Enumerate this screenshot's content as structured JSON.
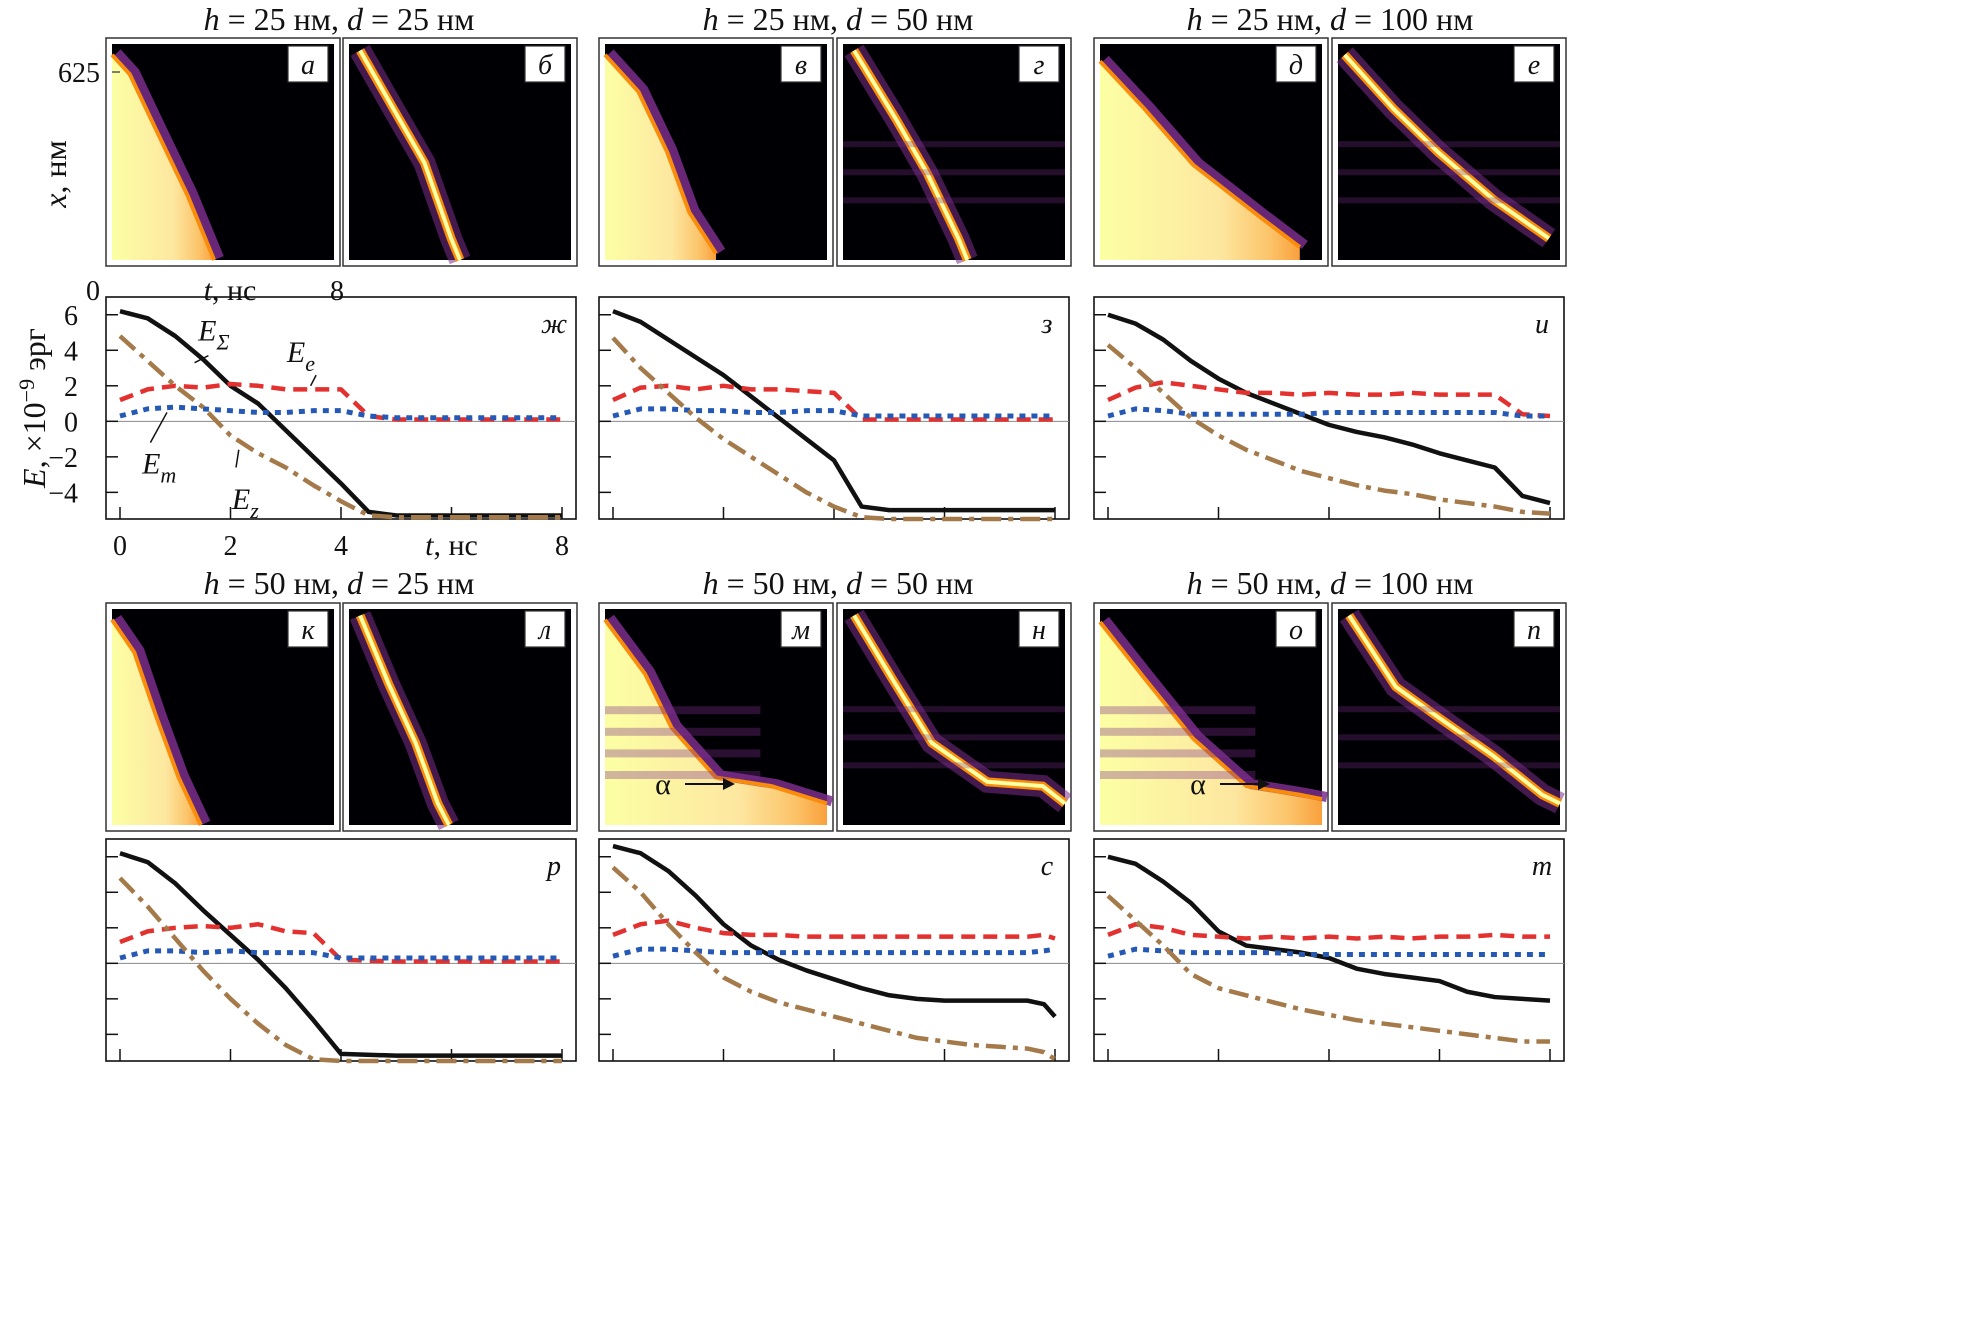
{
  "groups": [
    {
      "title_h": "25 нм",
      "title_d": "25 нм",
      "heat_labels": [
        "а",
        "б"
      ],
      "energy_label": "ж"
    },
    {
      "title_h": "25 нм",
      "title_d": "50 нм",
      "heat_labels": [
        "в",
        "г"
      ],
      "energy_label": "з"
    },
    {
      "title_h": "25 нм",
      "title_d": "100 нм",
      "heat_labels": [
        "д",
        "е"
      ],
      "energy_label": "и"
    },
    {
      "title_h": "50 нм",
      "title_d": "25 нм",
      "heat_labels": [
        "к",
        "л"
      ],
      "energy_label": "р"
    },
    {
      "title_h": "50 нм",
      "title_d": "50 нм",
      "heat_labels": [
        "м",
        "н"
      ],
      "energy_label": "с"
    },
    {
      "title_h": "50 нм",
      "title_d": "100 нм",
      "heat_labels": [
        "о",
        "п"
      ],
      "energy_label": "т"
    }
  ],
  "title_h_symbol": "h",
  "title_d_symbol": "d",
  "heatmap_axes": {
    "y_tick": "625",
    "y_label_symbol": "x",
    "y_label_unit": ", нм",
    "x_tick_start": "0",
    "x_tick_end": "8",
    "x_label_symbol": "t",
    "x_label_unit": ", нс"
  },
  "energy_axes": {
    "y_label_symbol": "E",
    "y_label_unit": ", ×10",
    "y_label_exp": "−9",
    "y_label_unit2": " эрг",
    "y_ticks": [
      "6",
      "4",
      "2",
      "0",
      "−2",
      "−4"
    ],
    "x_ticks": [
      "0",
      "2",
      "4",
      "8"
    ],
    "x_label_symbol": "t",
    "x_label_unit": ", нс"
  },
  "curve_labels": {
    "sum": {
      "main": "E",
      "sub": "Σ"
    },
    "e": {
      "main": "E",
      "sub": "e"
    },
    "m": {
      "main": "E",
      "sub": "m"
    },
    "z": {
      "main": "E",
      "sub": "z"
    }
  },
  "alpha_label": "α",
  "colors": {
    "sum": "#111111",
    "e": "#e2312f",
    "m": "#2659b5",
    "z": "#a57a4a",
    "heat_bg": "#000004",
    "heat_mid": "#7a2d8c",
    "heat_hot": "#f98c0a",
    "heat_max": "#fcffa4"
  },
  "chart_data": [
    {
      "type": "line",
      "panel": "ж",
      "x": [
        0,
        0.5,
        1,
        1.5,
        2,
        2.5,
        3,
        3.5,
        4,
        4.5,
        5,
        6,
        7,
        8
      ],
      "series": [
        {
          "name": "EΣ",
          "values": [
            6.2,
            5.8,
            4.8,
            3.5,
            2.0,
            1.0,
            -0.5,
            -2.0,
            -3.5,
            -5.1,
            -5.3,
            -5.3,
            -5.3,
            -5.3
          ]
        },
        {
          "name": "Ee",
          "values": [
            1.2,
            1.8,
            2.0,
            1.9,
            2.1,
            2.0,
            1.8,
            1.8,
            1.8,
            0.3,
            0.1,
            0.1,
            0.1,
            0.1
          ]
        },
        {
          "name": "Em",
          "values": [
            0.3,
            0.7,
            0.8,
            0.7,
            0.6,
            0.5,
            0.5,
            0.6,
            0.6,
            0.3,
            0.2,
            0.2,
            0.2,
            0.2
          ]
        },
        {
          "name": "Ez",
          "values": [
            4.8,
            3.4,
            2.0,
            0.8,
            -0.8,
            -1.8,
            -2.6,
            -3.6,
            -4.5,
            -5.3,
            -5.4,
            -5.4,
            -5.4,
            -5.4
          ]
        }
      ],
      "xlim": [
        0,
        8
      ],
      "ylim": [
        -5.5,
        7
      ]
    },
    {
      "type": "line",
      "panel": "з",
      "x": [
        0,
        0.5,
        1,
        1.5,
        2,
        2.5,
        3,
        3.5,
        4,
        4.5,
        5,
        5.5,
        6,
        7,
        8
      ],
      "series": [
        {
          "name": "EΣ",
          "values": [
            6.2,
            5.6,
            4.6,
            3.6,
            2.6,
            1.4,
            0.2,
            -1.0,
            -2.2,
            -4.8,
            -5.0,
            -5.0,
            -5.0,
            -5.0,
            -5.0
          ]
        },
        {
          "name": "Ee",
          "values": [
            1.2,
            1.9,
            2.0,
            1.8,
            2.0,
            1.8,
            1.8,
            1.7,
            1.6,
            0.1,
            0.1,
            0.1,
            0.1,
            0.1,
            0.1
          ]
        },
        {
          "name": "Em",
          "values": [
            0.3,
            0.7,
            0.7,
            0.6,
            0.6,
            0.5,
            0.5,
            0.6,
            0.6,
            0.3,
            0.3,
            0.3,
            0.3,
            0.3,
            0.3
          ]
        },
        {
          "name": "Ez",
          "values": [
            4.7,
            3.0,
            1.6,
            0.2,
            -1.0,
            -2.0,
            -3.0,
            -4.0,
            -4.8,
            -5.4,
            -5.5,
            -5.5,
            -5.5,
            -5.5,
            -5.5
          ]
        }
      ],
      "xlim": [
        0,
        8
      ],
      "ylim": [
        -5.5,
        7
      ]
    },
    {
      "type": "line",
      "panel": "и",
      "x": [
        0,
        0.5,
        1,
        1.5,
        2,
        2.5,
        3,
        3.5,
        4,
        4.5,
        5,
        5.5,
        6,
        6.5,
        7,
        7.5,
        8
      ],
      "series": [
        {
          "name": "EΣ",
          "values": [
            6.0,
            5.5,
            4.6,
            3.4,
            2.4,
            1.6,
            1.0,
            0.4,
            -0.2,
            -0.6,
            -0.9,
            -1.3,
            -1.8,
            -2.2,
            -2.6,
            -4.2,
            -4.6
          ]
        },
        {
          "name": "Ee",
          "values": [
            1.2,
            1.9,
            2.2,
            2.0,
            1.8,
            1.6,
            1.6,
            1.5,
            1.6,
            1.5,
            1.5,
            1.6,
            1.5,
            1.5,
            1.5,
            0.4,
            0.3
          ]
        },
        {
          "name": "Em",
          "values": [
            0.3,
            0.7,
            0.6,
            0.4,
            0.4,
            0.4,
            0.4,
            0.4,
            0.5,
            0.5,
            0.5,
            0.5,
            0.5,
            0.5,
            0.5,
            0.3,
            0.3
          ]
        },
        {
          "name": "Ez",
          "values": [
            4.3,
            3.0,
            1.6,
            0.2,
            -0.8,
            -1.6,
            -2.2,
            -2.8,
            -3.2,
            -3.6,
            -3.9,
            -4.1,
            -4.4,
            -4.6,
            -4.8,
            -5.1,
            -5.2
          ]
        }
      ],
      "xlim": [
        0,
        8
      ],
      "ylim": [
        -5.5,
        7
      ]
    },
    {
      "type": "line",
      "panel": "р",
      "x": [
        0,
        0.5,
        1,
        1.5,
        2,
        2.5,
        3,
        3.5,
        4,
        5,
        6,
        7,
        8
      ],
      "series": [
        {
          "name": "EΣ",
          "values": [
            6.2,
            5.7,
            4.5,
            3.0,
            1.6,
            0.2,
            -1.4,
            -3.2,
            -5.1,
            -5.2,
            -5.2,
            -5.2,
            -5.2
          ]
        },
        {
          "name": "Ee",
          "values": [
            1.2,
            1.8,
            2.0,
            2.1,
            2.0,
            2.2,
            1.8,
            1.7,
            0.2,
            0.1,
            0.1,
            0.1,
            0.1
          ]
        },
        {
          "name": "Em",
          "values": [
            0.3,
            0.7,
            0.7,
            0.6,
            0.7,
            0.6,
            0.6,
            0.6,
            0.3,
            0.3,
            0.3,
            0.3,
            0.3
          ]
        },
        {
          "name": "Ez",
          "values": [
            4.8,
            3.2,
            1.4,
            -0.4,
            -2.0,
            -3.4,
            -4.6,
            -5.4,
            -5.5,
            -5.5,
            -5.5,
            -5.5,
            -5.5
          ]
        }
      ],
      "xlim": [
        0,
        8
      ],
      "ylim": [
        -5.5,
        7
      ]
    },
    {
      "type": "line",
      "panel": "с",
      "x": [
        0,
        0.5,
        1,
        1.5,
        2,
        2.5,
        3,
        3.5,
        4,
        4.5,
        5,
        5.5,
        6,
        6.5,
        7,
        7.5,
        7.8,
        8
      ],
      "series": [
        {
          "name": "EΣ",
          "values": [
            6.6,
            6.2,
            5.2,
            3.8,
            2.2,
            1.0,
            0.2,
            -0.4,
            -0.9,
            -1.4,
            -1.8,
            -2.0,
            -2.1,
            -2.1,
            -2.1,
            -2.1,
            -2.3,
            -3.0
          ]
        },
        {
          "name": "Ee",
          "values": [
            1.6,
            2.2,
            2.4,
            2.0,
            1.7,
            1.6,
            1.6,
            1.5,
            1.5,
            1.5,
            1.5,
            1.5,
            1.5,
            1.5,
            1.5,
            1.5,
            1.6,
            1.4
          ]
        },
        {
          "name": "Em",
          "values": [
            0.4,
            0.8,
            0.8,
            0.7,
            0.6,
            0.6,
            0.6,
            0.6,
            0.6,
            0.6,
            0.6,
            0.6,
            0.6,
            0.6,
            0.6,
            0.6,
            0.7,
            0.8
          ]
        },
        {
          "name": "Ez",
          "values": [
            5.4,
            4.0,
            2.2,
            0.6,
            -0.8,
            -1.6,
            -2.2,
            -2.6,
            -3.0,
            -3.4,
            -3.8,
            -4.2,
            -4.4,
            -4.6,
            -4.7,
            -4.8,
            -5.0,
            -5.4
          ]
        }
      ],
      "xlim": [
        0,
        8
      ],
      "ylim": [
        -5.5,
        7
      ]
    },
    {
      "type": "line",
      "panel": "т",
      "x": [
        0,
        0.5,
        1,
        1.5,
        2,
        2.5,
        3,
        3.5,
        4,
        4.5,
        5,
        5.5,
        6,
        6.5,
        7,
        7.5,
        8
      ],
      "series": [
        {
          "name": "EΣ",
          "values": [
            6.0,
            5.6,
            4.6,
            3.4,
            1.8,
            1.0,
            0.8,
            0.6,
            0.3,
            -0.3,
            -0.6,
            -0.8,
            -1.0,
            -1.6,
            -1.9,
            -2.0,
            -2.1
          ]
        },
        {
          "name": "Ee",
          "values": [
            1.6,
            2.2,
            2.0,
            1.6,
            1.5,
            1.4,
            1.5,
            1.4,
            1.5,
            1.4,
            1.5,
            1.4,
            1.5,
            1.5,
            1.6,
            1.5,
            1.5
          ]
        },
        {
          "name": "Em",
          "values": [
            0.4,
            0.8,
            0.7,
            0.6,
            0.6,
            0.6,
            0.6,
            0.5,
            0.5,
            0.5,
            0.5,
            0.5,
            0.5,
            0.5,
            0.5,
            0.5,
            0.5
          ]
        },
        {
          "name": "Ez",
          "values": [
            3.8,
            2.4,
            1.0,
            -0.6,
            -1.4,
            -1.8,
            -2.2,
            -2.6,
            -2.9,
            -3.2,
            -3.4,
            -3.6,
            -3.8,
            -4.0,
            -4.2,
            -4.4,
            -4.4
          ]
        }
      ],
      "xlim": [
        0,
        8
      ],
      "ylim": [
        -5.5,
        7
      ]
    }
  ]
}
